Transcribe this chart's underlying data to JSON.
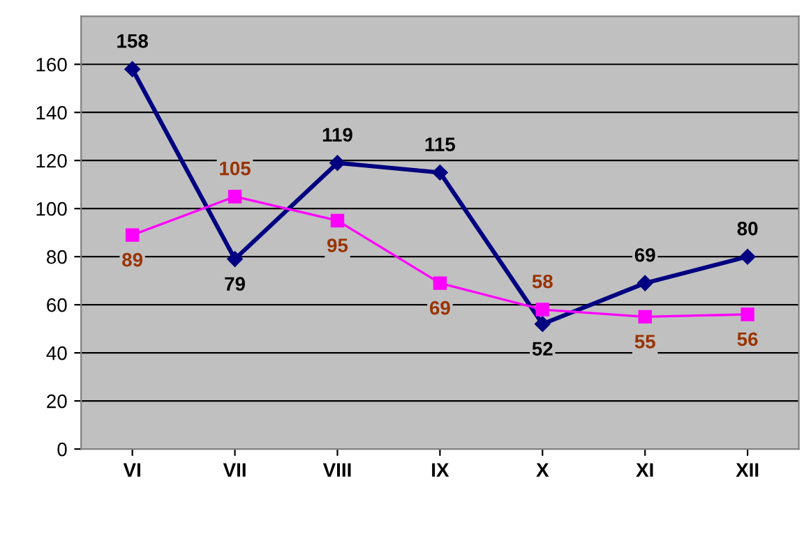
{
  "chart_data": {
    "type": "line",
    "categories": [
      "VI",
      "VII",
      "VIII",
      "IX",
      "X",
      "XI",
      "XII"
    ],
    "series": [
      {
        "color": "#000080",
        "marker": "diamond",
        "values": [
          158,
          79,
          119,
          115,
          52,
          69,
          80
        ]
      },
      {
        "color": "#ff00ff",
        "marker": "square",
        "values": [
          89,
          105,
          95,
          69,
          58,
          55,
          56
        ]
      }
    ],
    "ylim": [
      0,
      180
    ],
    "yticks": [
      0,
      20,
      40,
      60,
      80,
      100,
      120,
      140,
      160
    ],
    "grid": "y",
    "legend": false,
    "data_labels": true,
    "line_style": "solid"
  }
}
